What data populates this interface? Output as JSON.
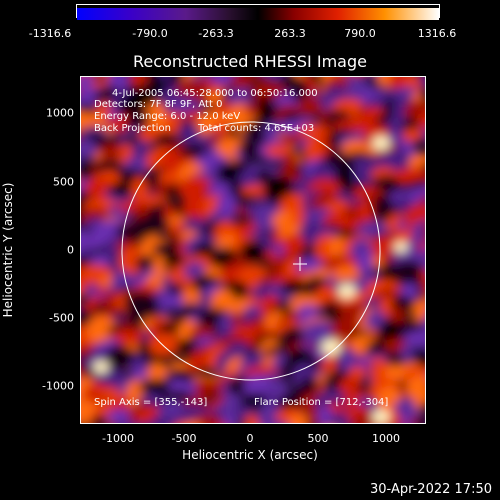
{
  "colorbar": {
    "labels": [
      "-1316.6",
      "-790.0",
      "-263.3",
      "263.3",
      "790.0",
      "1316.6"
    ]
  },
  "title": "Reconstructed RHESSI Image",
  "info": {
    "time_range": "4-Jul-2005 06:45:28.000 to 06:50:16.000",
    "detectors": "Detectors: 7F 8F 9F, Att 0",
    "energy_range": "Energy Range: 6.0 - 12.0 keV",
    "method": "Back Projection",
    "total_counts": "Total counts: 4.65E+03",
    "spin_axis": "Spin Axis = [355,-143]",
    "flare_position": "Flare Position = [712,-304]"
  },
  "axes": {
    "xlabel": "Heliocentric X (arcsec)",
    "ylabel": "Heliocentric Y (arcsec)",
    "xticks": [
      "-1000",
      "-500",
      "0",
      "500",
      "1000"
    ],
    "yticks": [
      "1000",
      "500",
      "0",
      "-500",
      "-1000"
    ]
  },
  "timestamp": "30-Apr-2022 17:50",
  "colors": {
    "background": "#000000",
    "circle": "#ffffff",
    "colormap": [
      "#0000ff",
      "#4b0082",
      "#000000",
      "#cc2200",
      "#ff8000",
      "#ffffff"
    ]
  }
}
